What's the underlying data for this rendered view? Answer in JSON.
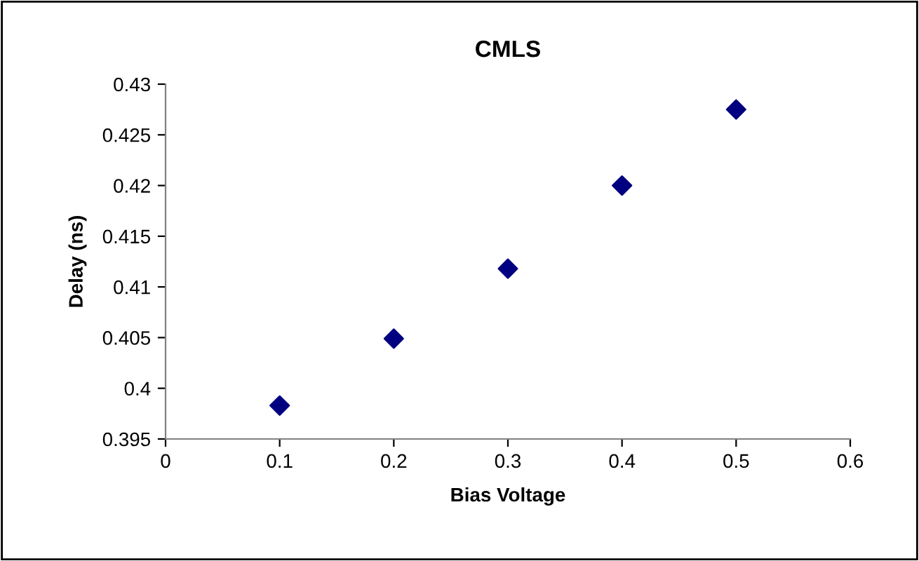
{
  "chart_data": {
    "type": "scatter",
    "title": "CMLS",
    "xlabel": "Bias Voltage",
    "ylabel": "Delay (ns)",
    "x": [
      0.1,
      0.2,
      0.3,
      0.4,
      0.5
    ],
    "series": [
      {
        "color": "#000080",
        "values": [
          0.3983,
          0.4049,
          0.4118,
          0.42,
          0.4275
        ]
      }
    ],
    "xlim": [
      0,
      0.6
    ],
    "xticks": [
      0,
      0.1,
      0.2,
      0.3,
      0.4,
      0.5,
      0.6
    ],
    "ylim": [
      0.395,
      0.43
    ],
    "yticks": [
      0.395,
      0.4,
      0.405,
      0.41,
      0.415,
      0.42,
      0.425,
      0.43
    ],
    "marker": "diamond",
    "grid": false,
    "legend": false
  }
}
